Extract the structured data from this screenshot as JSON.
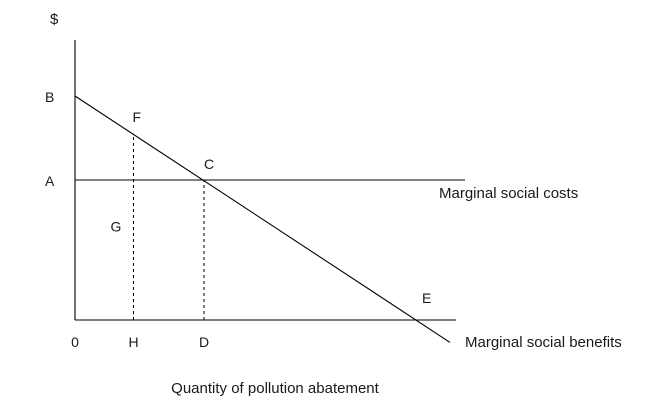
{
  "chart_data": {
    "type": "line",
    "title": "",
    "y_axis_label": "$",
    "x_axis_label": "Quantity of pollution abatement",
    "series": [
      {
        "name": "Marginal social costs",
        "points": [
          [
            0,
            50
          ],
          [
            130,
            50
          ]
        ]
      },
      {
        "name": "Marginal social benefits",
        "points": [
          [
            0,
            80
          ],
          [
            125,
            -8
          ]
        ]
      }
    ],
    "guides": [
      {
        "from": [
          19.5,
          0
        ],
        "to": [
          19.5,
          66.5
        ]
      },
      {
        "from": [
          43,
          0
        ],
        "to": [
          43,
          50
        ]
      }
    ],
    "points": [
      {
        "label": "B",
        "x": 0,
        "y": 80
      },
      {
        "label": "A",
        "x": 0,
        "y": 50
      },
      {
        "label": "F",
        "x": 19.5,
        "y": 66.5
      },
      {
        "label": "C",
        "x": 43,
        "y": 50
      },
      {
        "label": "G",
        "x": 19.5,
        "y": 42
      },
      {
        "label": "E",
        "x": 115,
        "y": 0
      }
    ],
    "x_ticks": [
      {
        "label": "0",
        "x": 0
      },
      {
        "label": "H",
        "x": 19.5
      },
      {
        "label": "D",
        "x": 43
      }
    ],
    "xlim": [
      0,
      127
    ],
    "ylim": [
      0,
      100
    ]
  }
}
